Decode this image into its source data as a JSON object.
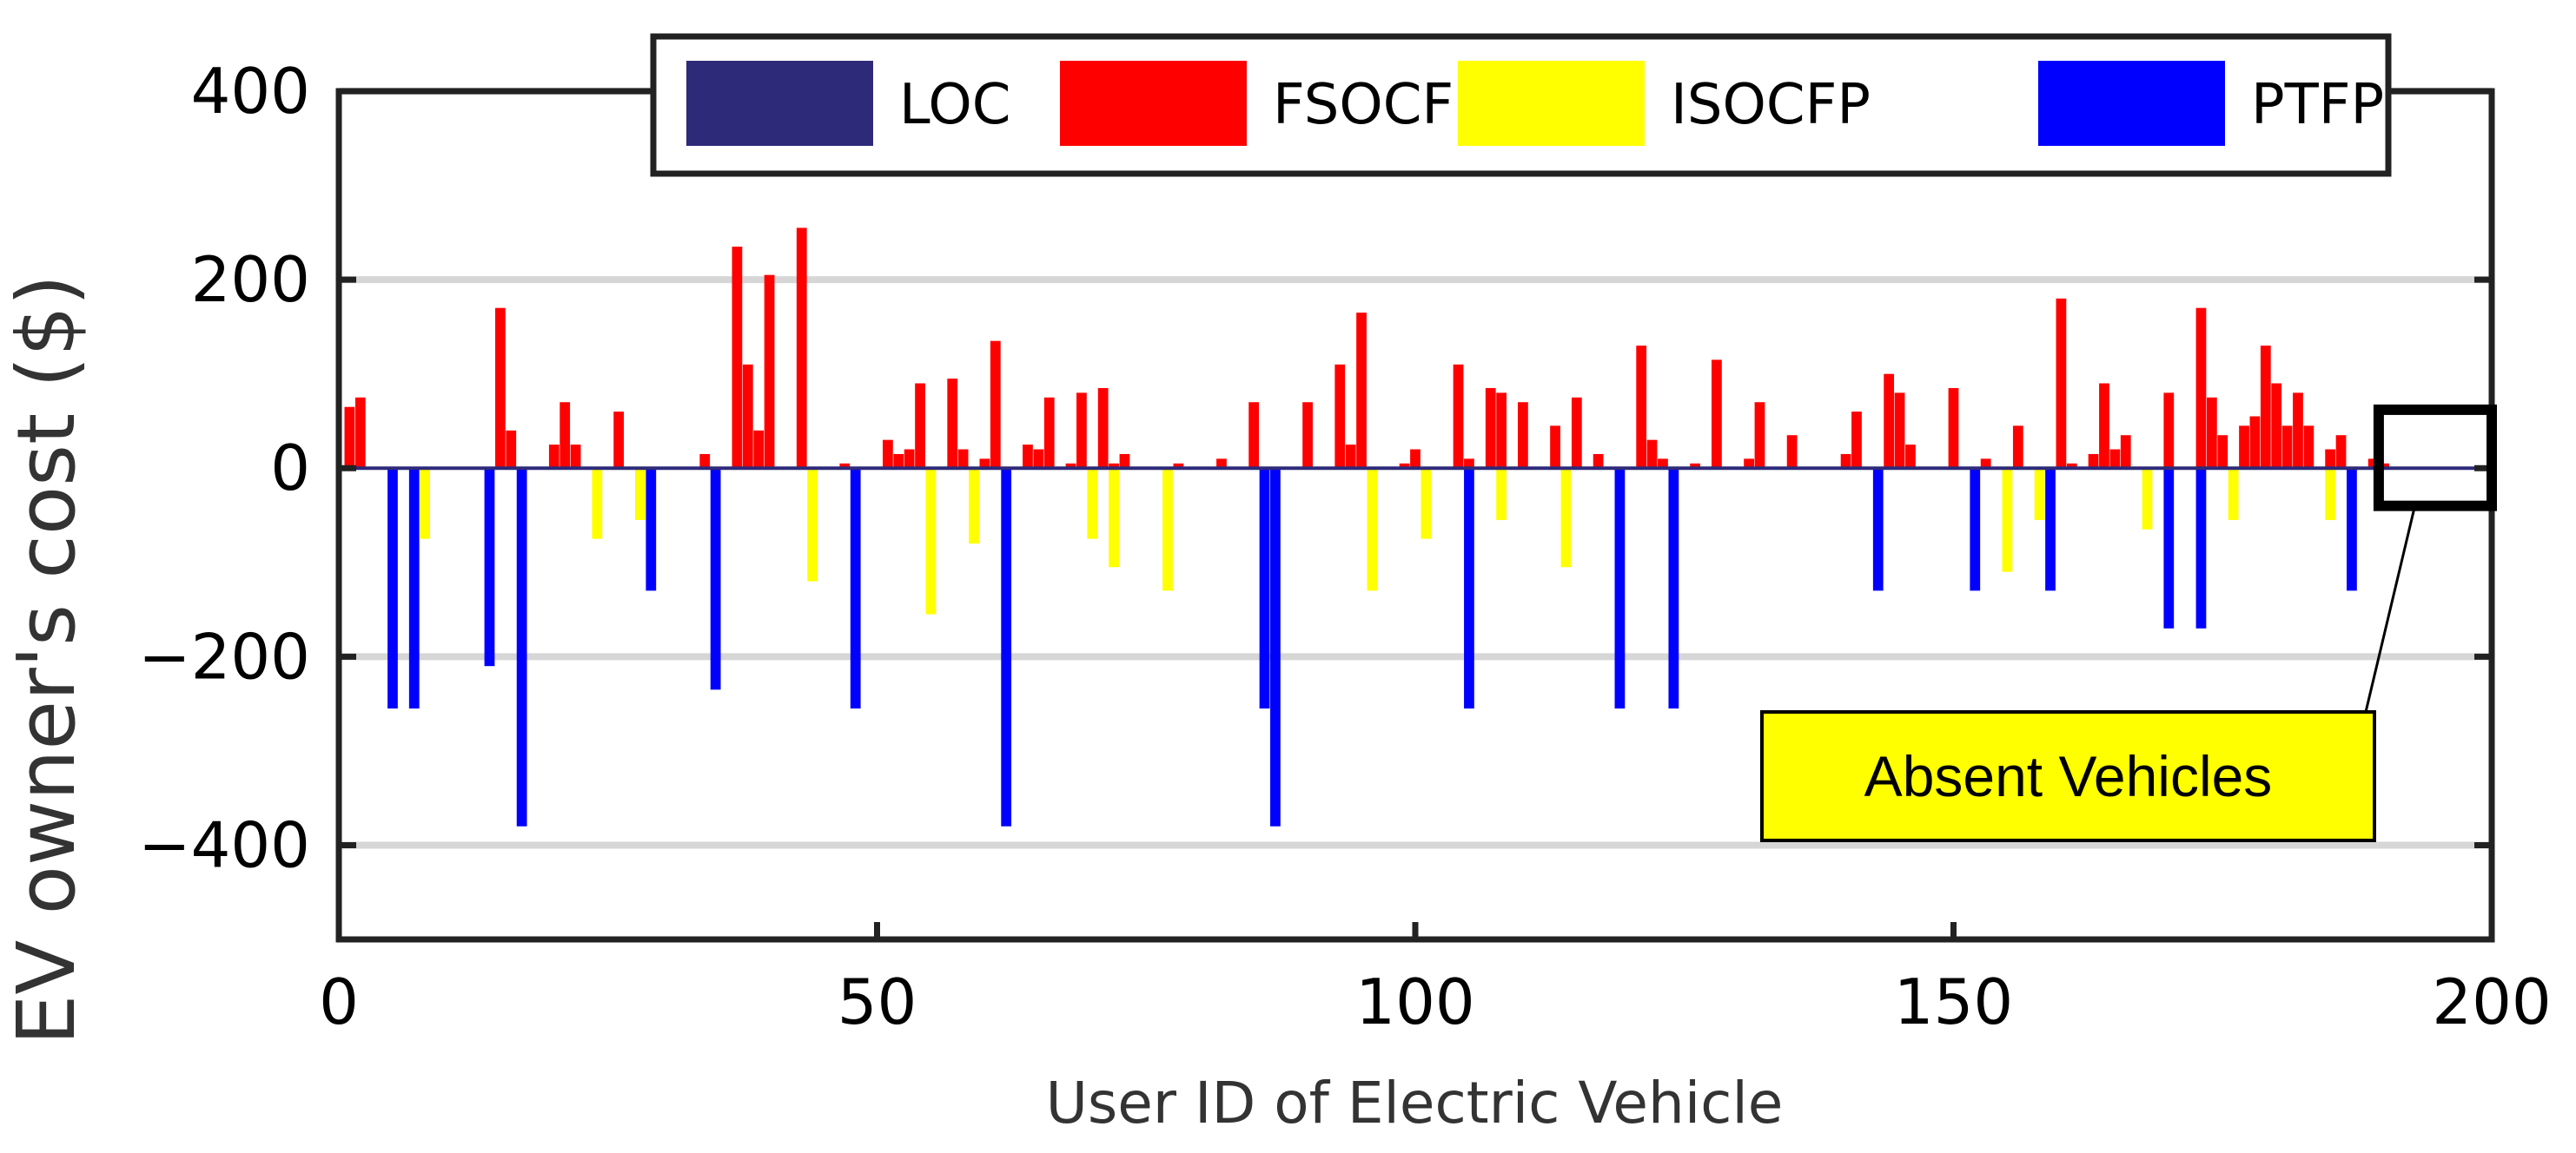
{
  "chart_data": {
    "type": "bar",
    "title": "",
    "xlabel": "User ID of Electric Vehicle",
    "ylabel": "EV owner's cost ($)",
    "xlim": [
      0,
      200
    ],
    "ylim": [
      -500,
      400
    ],
    "x_ticks": [
      0,
      50,
      100,
      150,
      200
    ],
    "x_tick_labels": [
      "0",
      "50",
      "100",
      "150",
      "200"
    ],
    "y_ticks": [
      -400,
      -200,
      0,
      200,
      400
    ],
    "y_tick_labels": [
      "−400",
      "−200",
      "0",
      "200",
      "400"
    ],
    "grid": "horizontal",
    "legend": "top",
    "series": [
      {
        "name": "LOC",
        "color": "#2e2a7a",
        "points": []
      },
      {
        "name": "FSOCFP",
        "color": "#ff0000",
        "points": [
          [
            1,
            65
          ],
          [
            2,
            75
          ],
          [
            15,
            170
          ],
          [
            16,
            40
          ],
          [
            20,
            25
          ],
          [
            21,
            70
          ],
          [
            22,
            25
          ],
          [
            26,
            60
          ],
          [
            34,
            15
          ],
          [
            37,
            235
          ],
          [
            38,
            110
          ],
          [
            39,
            40
          ],
          [
            40,
            205
          ],
          [
            43,
            255
          ],
          [
            47,
            5
          ],
          [
            51,
            30
          ],
          [
            52,
            15
          ],
          [
            53,
            20
          ],
          [
            54,
            90
          ],
          [
            57,
            95
          ],
          [
            58,
            20
          ],
          [
            60,
            10
          ],
          [
            61,
            135
          ],
          [
            64,
            25
          ],
          [
            65,
            20
          ],
          [
            66,
            75
          ],
          [
            68,
            5
          ],
          [
            69,
            80
          ],
          [
            71,
            85
          ],
          [
            72,
            5
          ],
          [
            73,
            15
          ],
          [
            78,
            5
          ],
          [
            82,
            10
          ],
          [
            85,
            70
          ],
          [
            90,
            70
          ],
          [
            93,
            110
          ],
          [
            94,
            25
          ],
          [
            95,
            165
          ],
          [
            99,
            5
          ],
          [
            100,
            20
          ],
          [
            104,
            110
          ],
          [
            105,
            10
          ],
          [
            107,
            85
          ],
          [
            108,
            80
          ],
          [
            110,
            70
          ],
          [
            113,
            45
          ],
          [
            115,
            75
          ],
          [
            117,
            15
          ],
          [
            121,
            130
          ],
          [
            122,
            30
          ],
          [
            123,
            10
          ],
          [
            126,
            5
          ],
          [
            128,
            115
          ],
          [
            131,
            10
          ],
          [
            132,
            70
          ],
          [
            135,
            35
          ],
          [
            140,
            15
          ],
          [
            141,
            60
          ],
          [
            144,
            100
          ],
          [
            145,
            80
          ],
          [
            146,
            25
          ],
          [
            150,
            85
          ],
          [
            153,
            10
          ],
          [
            156,
            45
          ],
          [
            160,
            180
          ],
          [
            161,
            5
          ],
          [
            163,
            15
          ],
          [
            164,
            90
          ],
          [
            165,
            20
          ],
          [
            166,
            35
          ],
          [
            170,
            80
          ],
          [
            173,
            170
          ],
          [
            174,
            75
          ],
          [
            175,
            35
          ],
          [
            177,
            45
          ],
          [
            178,
            55
          ],
          [
            179,
            130
          ],
          [
            180,
            90
          ],
          [
            181,
            45
          ],
          [
            182,
            80
          ],
          [
            183,
            45
          ],
          [
            185,
            20
          ],
          [
            186,
            35
          ],
          [
            189,
            10
          ],
          [
            190,
            5
          ]
        ]
      },
      {
        "name": "ISOCFP",
        "color": "#ffff00",
        "points": [
          [
            8,
            -75
          ],
          [
            24,
            -75
          ],
          [
            28,
            -55
          ],
          [
            44,
            -120
          ],
          [
            55,
            -155
          ],
          [
            59,
            -80
          ],
          [
            70,
            -75
          ],
          [
            72,
            -105
          ],
          [
            77,
            -130
          ],
          [
            96,
            -130
          ],
          [
            101,
            -75
          ],
          [
            108,
            -55
          ],
          [
            114,
            -105
          ],
          [
            155,
            -110
          ],
          [
            158,
            -55
          ],
          [
            168,
            -65
          ],
          [
            176,
            -55
          ],
          [
            185,
            -55
          ]
        ]
      },
      {
        "name": "PTFP",
        "color": "#0000ff",
        "points": [
          [
            5,
            -255
          ],
          [
            7,
            -255
          ],
          [
            14,
            -210
          ],
          [
            17,
            -380
          ],
          [
            29,
            -130
          ],
          [
            35,
            -235
          ],
          [
            48,
            -255
          ],
          [
            62,
            -380
          ],
          [
            86,
            -255
          ],
          [
            87,
            -380
          ],
          [
            105,
            -255
          ],
          [
            119,
            -255
          ],
          [
            124,
            -255
          ],
          [
            143,
            -130
          ],
          [
            152,
            -130
          ],
          [
            159,
            -130
          ],
          [
            170,
            -170
          ],
          [
            173,
            -170
          ],
          [
            187,
            -130
          ]
        ]
      }
    ],
    "annotation": {
      "text": "Absent Vehicles",
      "box_fill": "#ffff00",
      "target_range_x": [
        189.5,
        200
      ]
    }
  }
}
